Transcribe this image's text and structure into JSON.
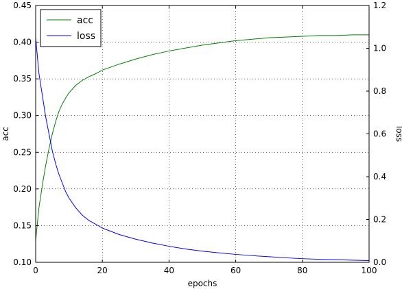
{
  "chart_data": {
    "type": "line",
    "title": "",
    "xlabel": "epochs",
    "ylabel_left": "acc",
    "ylabel_right": "loss",
    "xlim": [
      0,
      100
    ],
    "ylim_left": [
      0.1,
      0.45
    ],
    "ylim_right": [
      0.0,
      1.2
    ],
    "x_ticks": [
      "0",
      "20",
      "40",
      "60",
      "80",
      "100"
    ],
    "y_ticks_left": [
      "0.10",
      "0.15",
      "0.20",
      "0.25",
      "0.30",
      "0.35",
      "0.40",
      "0.45"
    ],
    "y_ticks_right": [
      "0.0",
      "0.2",
      "0.4",
      "0.6",
      "0.8",
      "1.0",
      "1.2"
    ],
    "grid": true,
    "legend_position": "top-left",
    "series": [
      {
        "name": "acc",
        "axis": "left",
        "color": "#008000",
        "x": [
          0,
          1,
          2,
          3,
          4,
          5,
          6,
          7,
          8,
          9,
          10,
          12,
          14,
          16,
          18,
          20,
          25,
          30,
          35,
          40,
          45,
          50,
          55,
          60,
          65,
          70,
          75,
          80,
          85,
          90,
          95,
          100
        ],
        "y": [
          0.13,
          0.175,
          0.205,
          0.232,
          0.255,
          0.275,
          0.292,
          0.306,
          0.316,
          0.324,
          0.331,
          0.341,
          0.348,
          0.353,
          0.357,
          0.362,
          0.37,
          0.377,
          0.383,
          0.388,
          0.392,
          0.396,
          0.399,
          0.402,
          0.404,
          0.406,
          0.407,
          0.408,
          0.409,
          0.409,
          0.41,
          0.41
        ]
      },
      {
        "name": "loss",
        "axis": "right",
        "color": "#0000ff",
        "x": [
          0,
          1,
          2,
          3,
          4,
          5,
          6,
          7,
          8,
          9,
          10,
          12,
          14,
          16,
          18,
          20,
          25,
          30,
          35,
          40,
          45,
          50,
          55,
          60,
          65,
          70,
          75,
          80,
          85,
          90,
          95,
          100
        ],
        "y": [
          1.05,
          0.88,
          0.78,
          0.68,
          0.6,
          0.52,
          0.46,
          0.41,
          0.37,
          0.33,
          0.3,
          0.255,
          0.22,
          0.195,
          0.178,
          0.16,
          0.13,
          0.108,
          0.09,
          0.075,
          0.062,
          0.052,
          0.044,
          0.037,
          0.031,
          0.026,
          0.021,
          0.017,
          0.014,
          0.012,
          0.01,
          0.008
        ]
      }
    ]
  }
}
